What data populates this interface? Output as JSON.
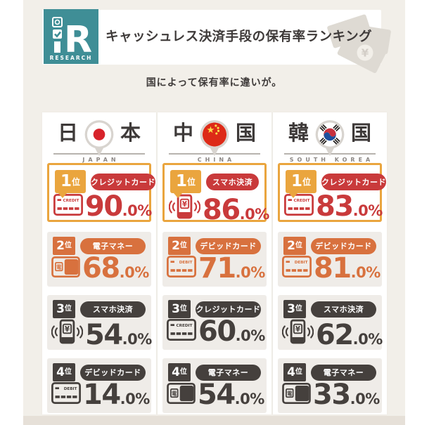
{
  "colors": {
    "page_background": "#f2efe9",
    "panel_white": "#ffffff",
    "card_gray": "#efece8",
    "logo_teal": "#3f8e96",
    "text_dark": "#3e3a39",
    "rank1_gold": "#eaa53e",
    "rank1_red": "#c93a3b",
    "rank2_orange": "#d8713e",
    "rank34_dark": "#45403d",
    "bottom_strip": "#e6e0d8"
  },
  "header": {
    "logo_letter": "R",
    "logo_caption": "RESEARCH",
    "title": "キャッシュレス決済手段の保有率ランキング"
  },
  "subtitle": "国によって保有率に違いが。",
  "icons": {
    "credit-card": "CREDIT",
    "debit-card": "DEBIT",
    "e-money": "電",
    "smartphone": "¥"
  },
  "countries": [
    {
      "kanji_first": "日",
      "kanji_second": "本",
      "latin": "JAPAN",
      "flag": "japan",
      "ranks": [
        {
          "rank_no": "1",
          "rank_unit": "位",
          "method": "クレジットカード",
          "icon": "credit-card",
          "value_int": "90",
          "value_rest": ".0%"
        },
        {
          "rank_no": "2",
          "rank_unit": "位",
          "method": "電子マネー",
          "icon": "e-money",
          "value_int": "68",
          "value_rest": ".0%"
        },
        {
          "rank_no": "3",
          "rank_unit": "位",
          "method": "スマホ決済",
          "icon": "smartphone",
          "value_int": "54",
          "value_rest": ".0%"
        },
        {
          "rank_no": "4",
          "rank_unit": "位",
          "method": "デビッドカード",
          "icon": "debit-card",
          "value_int": "14",
          "value_rest": ".0%"
        }
      ]
    },
    {
      "kanji_first": "中",
      "kanji_second": "国",
      "latin": "CHINA",
      "flag": "china",
      "ranks": [
        {
          "rank_no": "1",
          "rank_unit": "位",
          "method": "スマホ決済",
          "icon": "smartphone",
          "value_int": "86",
          "value_rest": ".0%"
        },
        {
          "rank_no": "2",
          "rank_unit": "位",
          "method": "デビッドカード",
          "icon": "debit-card",
          "value_int": "71",
          "value_rest": ".0%"
        },
        {
          "rank_no": "3",
          "rank_unit": "位",
          "method": "クレジットカード",
          "icon": "credit-card",
          "value_int": "60",
          "value_rest": ".0%"
        },
        {
          "rank_no": "4",
          "rank_unit": "位",
          "method": "電子マネー",
          "icon": "e-money",
          "value_int": "54",
          "value_rest": ".0%"
        }
      ]
    },
    {
      "kanji_first": "韓",
      "kanji_second": "国",
      "latin": "SOUTH KOREA",
      "flag": "south-korea",
      "ranks": [
        {
          "rank_no": "1",
          "rank_unit": "位",
          "method": "クレジットカード",
          "icon": "credit-card",
          "value_int": "83",
          "value_rest": ".0%"
        },
        {
          "rank_no": "2",
          "rank_unit": "位",
          "method": "デビッドカード",
          "icon": "debit-card",
          "value_int": "81",
          "value_rest": ".0%"
        },
        {
          "rank_no": "3",
          "rank_unit": "位",
          "method": "スマホ決済",
          "icon": "smartphone",
          "value_int": "62",
          "value_rest": ".0%"
        },
        {
          "rank_no": "4",
          "rank_unit": "位",
          "method": "電子マネー",
          "icon": "e-money",
          "value_int": "33",
          "value_rest": ".0%"
        }
      ]
    }
  ],
  "chart_data": {
    "type": "table",
    "title": "キャッシュレス決済手段の保有率ランキング",
    "subtitle": "国によって保有率に違いが。",
    "unit": "%",
    "series": [
      {
        "name": "日本",
        "data": [
          [
            "クレジットカード",
            90.0
          ],
          [
            "電子マネー",
            68.0
          ],
          [
            "スマホ決済",
            54.0
          ],
          [
            "デビッドカード",
            14.0
          ]
        ]
      },
      {
        "name": "中国",
        "data": [
          [
            "スマホ決済",
            86.0
          ],
          [
            "デビッドカード",
            71.0
          ],
          [
            "クレジットカード",
            60.0
          ],
          [
            "電子マネー",
            54.0
          ]
        ]
      },
      {
        "name": "韓国",
        "data": [
          [
            "クレジットカード",
            83.0
          ],
          [
            "デビッドカード",
            81.0
          ],
          [
            "スマホ決済",
            62.0
          ],
          [
            "電子マネー",
            33.0
          ]
        ]
      }
    ]
  }
}
